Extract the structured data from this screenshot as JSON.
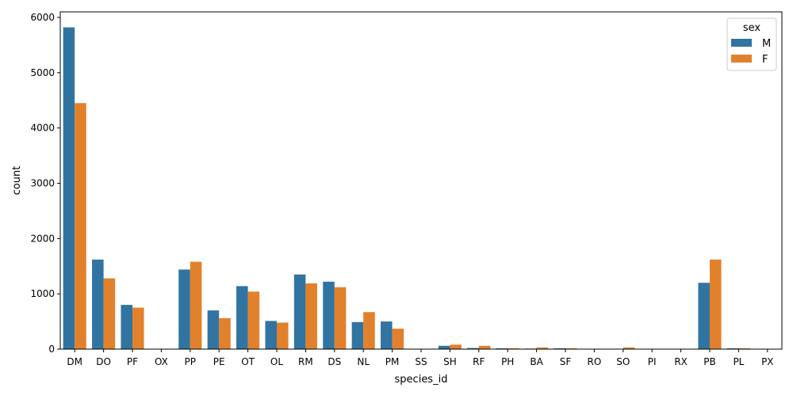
{
  "chart_data": {
    "type": "bar",
    "xlabel": "species_id",
    "ylabel": "count",
    "ylim": [
      0,
      6100
    ],
    "yticks": [
      0,
      1000,
      2000,
      3000,
      4000,
      5000,
      6000
    ],
    "categories": [
      "DM",
      "DO",
      "PF",
      "OX",
      "PP",
      "PE",
      "OT",
      "OL",
      "RM",
      "DS",
      "NL",
      "PM",
      "SS",
      "SH",
      "RF",
      "PH",
      "BA",
      "SF",
      "RO",
      "SO",
      "PI",
      "RX",
      "PB",
      "PL",
      "PX"
    ],
    "series": [
      {
        "name": "M",
        "color": "#3274a1",
        "values": [
          5820,
          1620,
          800,
          0,
          1440,
          700,
          1140,
          510,
          1350,
          1220,
          490,
          500,
          0,
          60,
          20,
          15,
          10,
          15,
          0,
          0,
          0,
          0,
          1200,
          15,
          0
        ]
      },
      {
        "name": "F",
        "color": "#e1812c",
        "values": [
          4450,
          1280,
          750,
          0,
          1580,
          560,
          1040,
          480,
          1190,
          1120,
          670,
          370,
          0,
          80,
          60,
          15,
          30,
          15,
          0,
          30,
          0,
          0,
          1620,
          15,
          0
        ]
      }
    ],
    "legend": {
      "title": "sex",
      "position": "top-right"
    },
    "grid": false
  }
}
